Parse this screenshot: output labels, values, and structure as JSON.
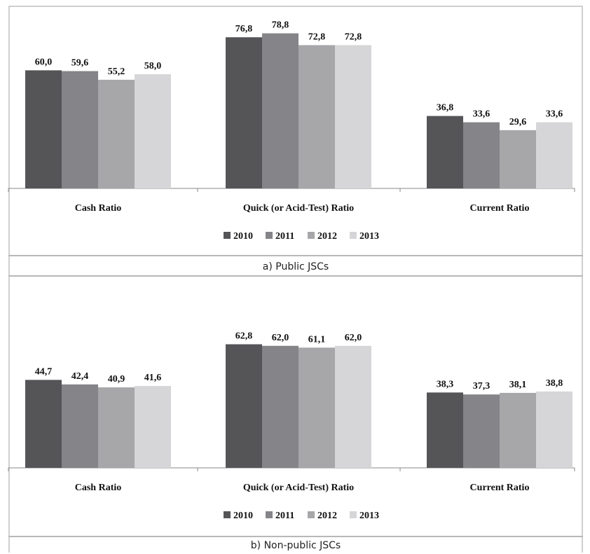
{
  "colors": {
    "2010": "#555558",
    "2011": "#858589",
    "2012": "#a7a7aa",
    "2013": "#d6d6d8",
    "axis": "#888888"
  },
  "chart_data": [
    {
      "type": "bar",
      "title": "a) Public JSCs",
      "categories": [
        "Cash Ratio",
        "Quick (or Acid-Test) Ratio",
        "Current Ratio"
      ],
      "series": [
        {
          "name": "2010",
          "values": [
            60.0,
            76.8,
            36.8
          ],
          "labels": [
            "60,0",
            "76,8",
            "36,8"
          ]
        },
        {
          "name": "2011",
          "values": [
            59.6,
            78.8,
            33.6
          ],
          "labels": [
            "59,6",
            "78,8",
            "33,6"
          ]
        },
        {
          "name": "2012",
          "values": [
            55.2,
            72.8,
            29.6
          ],
          "labels": [
            "55,2",
            "72,8",
            "29,6"
          ]
        },
        {
          "name": "2013",
          "values": [
            58.0,
            72.8,
            33.6
          ],
          "labels": [
            "58,0",
            "72,8",
            "33,6"
          ]
        }
      ],
      "ylim": [
        0,
        85
      ],
      "legend": "bottom",
      "grid": false
    },
    {
      "type": "bar",
      "title": "b) Non-public JSCs",
      "categories": [
        "Cash Ratio",
        "Quick (or Acid-Test) Ratio",
        "Current Ratio"
      ],
      "series": [
        {
          "name": "2010",
          "values": [
            44.7,
            62.8,
            38.3
          ],
          "labels": [
            "44,7",
            "62,8",
            "38,3"
          ]
        },
        {
          "name": "2011",
          "values": [
            42.4,
            62.0,
            37.3
          ],
          "labels": [
            "42,4",
            "62,0",
            "37,3"
          ]
        },
        {
          "name": "2012",
          "values": [
            40.9,
            61.1,
            38.1
          ],
          "labels": [
            "40,9",
            "61,1",
            "38,1"
          ]
        },
        {
          "name": "2013",
          "values": [
            41.6,
            62.0,
            38.8
          ],
          "labels": [
            "41,6",
            "62,0",
            "38,8"
          ]
        }
      ],
      "ylim": [
        0,
        85
      ],
      "legend": "bottom",
      "grid": false
    }
  ]
}
